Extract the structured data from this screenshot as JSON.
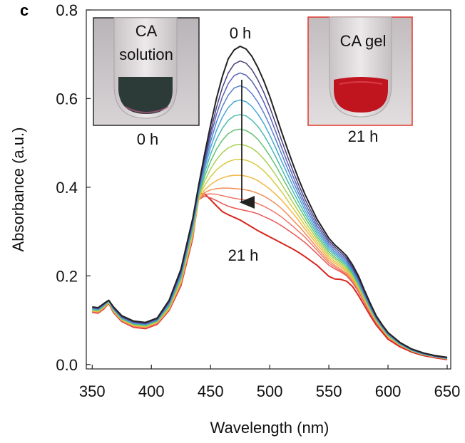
{
  "panel_letter": "c",
  "colors": {
    "axis": "#222222",
    "arrow": "#222222",
    "inset_solution_frame": "#2b2b2b",
    "inset_gel_frame": "#e0362c",
    "series_gradient": [
      "#222222",
      "#5b4fa8",
      "#5a7fd0",
      "#3fb4d8",
      "#52c07a",
      "#b9d34a",
      "#f2c53a",
      "#f58a5a",
      "#ee6a6a",
      "#d7261e"
    ]
  },
  "chart_data": {
    "type": "line",
    "title": "",
    "xlabel": "Wavelength (nm)",
    "ylabel": "Absorbance (a.u.)",
    "xlim": [
      345,
      653
    ],
    "ylim": [
      -0.01,
      0.8
    ],
    "xticks": [
      350,
      400,
      450,
      500,
      550,
      600,
      650
    ],
    "yticks": [
      0.0,
      0.2,
      0.4,
      0.6,
      0.8
    ],
    "xtick_labels": [
      "350",
      "400",
      "450",
      "500",
      "550",
      "600",
      "650"
    ],
    "ytick_labels": [
      "0.0",
      "0.2",
      "0.4",
      "0.6",
      "0.8"
    ],
    "grid": false,
    "legend": "none",
    "x": [
      350,
      355,
      360,
      364,
      368,
      375,
      385,
      395,
      405,
      415,
      425,
      435,
      440,
      445,
      450,
      455,
      460,
      465,
      470,
      475,
      480,
      485,
      490,
      495,
      500,
      505,
      510,
      515,
      520,
      525,
      530,
      540,
      550,
      555,
      560,
      565,
      570,
      575,
      580,
      585,
      590,
      595,
      600,
      610,
      620,
      630,
      640,
      650
    ],
    "series": [
      {
        "values": [
          0.13,
          0.128,
          0.138,
          0.145,
          0.13,
          0.11,
          0.098,
          0.095,
          0.105,
          0.145,
          0.215,
          0.33,
          0.405,
          0.475,
          0.54,
          0.6,
          0.65,
          0.69,
          0.71,
          0.718,
          0.712,
          0.695,
          0.67,
          0.64,
          0.605,
          0.565,
          0.525,
          0.487,
          0.45,
          0.415,
          0.383,
          0.328,
          0.285,
          0.27,
          0.258,
          0.245,
          0.225,
          0.2,
          0.168,
          0.138,
          0.11,
          0.09,
          0.072,
          0.05,
          0.035,
          0.026,
          0.02,
          0.016
        ]
      },
      {
        "values": [
          0.129,
          0.127,
          0.137,
          0.145,
          0.128,
          0.108,
          0.096,
          0.093,
          0.103,
          0.142,
          0.21,
          0.325,
          0.4,
          0.465,
          0.525,
          0.58,
          0.625,
          0.658,
          0.678,
          0.685,
          0.68,
          0.665,
          0.642,
          0.614,
          0.581,
          0.544,
          0.506,
          0.47,
          0.435,
          0.402,
          0.372,
          0.32,
          0.279,
          0.265,
          0.253,
          0.24,
          0.22,
          0.195,
          0.164,
          0.135,
          0.108,
          0.088,
          0.071,
          0.049,
          0.034,
          0.025,
          0.019,
          0.015
        ]
      },
      {
        "values": [
          0.128,
          0.126,
          0.136,
          0.145,
          0.127,
          0.107,
          0.095,
          0.092,
          0.102,
          0.14,
          0.207,
          0.322,
          0.396,
          0.458,
          0.514,
          0.564,
          0.604,
          0.634,
          0.652,
          0.658,
          0.653,
          0.639,
          0.618,
          0.592,
          0.561,
          0.526,
          0.49,
          0.456,
          0.423,
          0.392,
          0.363,
          0.313,
          0.274,
          0.26,
          0.248,
          0.236,
          0.216,
          0.192,
          0.161,
          0.133,
          0.106,
          0.087,
          0.07,
          0.048,
          0.034,
          0.025,
          0.019,
          0.015
        ]
      },
      {
        "values": [
          0.127,
          0.125,
          0.135,
          0.144,
          0.126,
          0.106,
          0.094,
          0.091,
          0.101,
          0.138,
          0.204,
          0.318,
          0.392,
          0.45,
          0.502,
          0.547,
          0.582,
          0.608,
          0.624,
          0.629,
          0.624,
          0.611,
          0.592,
          0.568,
          0.54,
          0.508,
          0.475,
          0.443,
          0.412,
          0.383,
          0.355,
          0.307,
          0.269,
          0.255,
          0.244,
          0.232,
          0.213,
          0.189,
          0.159,
          0.131,
          0.105,
          0.086,
          0.069,
          0.048,
          0.033,
          0.024,
          0.018,
          0.014
        ]
      },
      {
        "values": [
          0.126,
          0.124,
          0.134,
          0.144,
          0.125,
          0.105,
          0.093,
          0.09,
          0.1,
          0.136,
          0.201,
          0.314,
          0.388,
          0.442,
          0.489,
          0.528,
          0.558,
          0.58,
          0.593,
          0.597,
          0.593,
          0.582,
          0.565,
          0.544,
          0.518,
          0.489,
          0.459,
          0.43,
          0.401,
          0.374,
          0.347,
          0.301,
          0.264,
          0.251,
          0.24,
          0.228,
          0.21,
          0.186,
          0.157,
          0.129,
          0.104,
          0.085,
          0.068,
          0.047,
          0.033,
          0.024,
          0.018,
          0.014
        ]
      },
      {
        "values": [
          0.125,
          0.123,
          0.133,
          0.143,
          0.124,
          0.104,
          0.092,
          0.089,
          0.099,
          0.134,
          0.198,
          0.31,
          0.385,
          0.433,
          0.474,
          0.508,
          0.533,
          0.551,
          0.561,
          0.564,
          0.561,
          0.551,
          0.537,
          0.518,
          0.495,
          0.469,
          0.442,
          0.415,
          0.389,
          0.364,
          0.339,
          0.295,
          0.259,
          0.247,
          0.236,
          0.225,
          0.207,
          0.183,
          0.155,
          0.128,
          0.103,
          0.084,
          0.067,
          0.046,
          0.032,
          0.023,
          0.018,
          0.014
        ]
      },
      {
        "values": [
          0.124,
          0.122,
          0.132,
          0.142,
          0.123,
          0.103,
          0.091,
          0.088,
          0.098,
          0.132,
          0.195,
          0.306,
          0.382,
          0.424,
          0.458,
          0.486,
          0.506,
          0.521,
          0.529,
          0.531,
          0.528,
          0.52,
          0.508,
          0.491,
          0.471,
          0.449,
          0.425,
          0.401,
          0.377,
          0.354,
          0.331,
          0.289,
          0.254,
          0.242,
          0.232,
          0.221,
          0.204,
          0.18,
          0.153,
          0.126,
          0.101,
          0.083,
          0.066,
          0.046,
          0.032,
          0.023,
          0.018,
          0.014
        ]
      },
      {
        "values": [
          0.123,
          0.121,
          0.131,
          0.142,
          0.122,
          0.102,
          0.09,
          0.087,
          0.097,
          0.13,
          0.192,
          0.302,
          0.379,
          0.414,
          0.441,
          0.462,
          0.478,
          0.489,
          0.495,
          0.497,
          0.494,
          0.488,
          0.478,
          0.464,
          0.447,
          0.428,
          0.407,
          0.386,
          0.364,
          0.343,
          0.322,
          0.283,
          0.249,
          0.238,
          0.228,
          0.217,
          0.2,
          0.177,
          0.151,
          0.124,
          0.1,
          0.082,
          0.065,
          0.045,
          0.031,
          0.023,
          0.017,
          0.013
        ]
      },
      {
        "values": [
          0.122,
          0.12,
          0.13,
          0.141,
          0.121,
          0.101,
          0.089,
          0.086,
          0.096,
          0.128,
          0.189,
          0.298,
          0.376,
          0.404,
          0.424,
          0.439,
          0.45,
          0.458,
          0.462,
          0.463,
          0.461,
          0.456,
          0.448,
          0.437,
          0.423,
          0.407,
          0.39,
          0.371,
          0.352,
          0.333,
          0.313,
          0.277,
          0.244,
          0.233,
          0.224,
          0.213,
          0.197,
          0.174,
          0.149,
          0.123,
          0.099,
          0.081,
          0.064,
          0.045,
          0.031,
          0.022,
          0.017,
          0.013
        ]
      },
      {
        "values": [
          0.121,
          0.119,
          0.129,
          0.14,
          0.12,
          0.1,
          0.088,
          0.085,
          0.095,
          0.126,
          0.186,
          0.294,
          0.373,
          0.394,
          0.406,
          0.415,
          0.421,
          0.425,
          0.427,
          0.427,
          0.425,
          0.421,
          0.415,
          0.406,
          0.396,
          0.384,
          0.371,
          0.356,
          0.34,
          0.323,
          0.305,
          0.271,
          0.239,
          0.229,
          0.22,
          0.21,
          0.194,
          0.172,
          0.147,
          0.121,
          0.098,
          0.08,
          0.063,
          0.044,
          0.031,
          0.022,
          0.017,
          0.013
        ]
      },
      {
        "values": [
          0.12,
          0.118,
          0.128,
          0.139,
          0.119,
          0.099,
          0.087,
          0.084,
          0.094,
          0.125,
          0.184,
          0.291,
          0.372,
          0.388,
          0.394,
          0.397,
          0.398,
          0.398,
          0.397,
          0.396,
          0.394,
          0.391,
          0.386,
          0.38,
          0.372,
          0.363,
          0.352,
          0.339,
          0.325,
          0.311,
          0.296,
          0.264,
          0.234,
          0.224,
          0.215,
          0.206,
          0.19,
          0.169,
          0.144,
          0.119,
          0.097,
          0.079,
          0.063,
          0.044,
          0.031,
          0.022,
          0.017,
          0.013
        ]
      },
      {
        "values": [
          0.12,
          0.118,
          0.128,
          0.139,
          0.119,
          0.099,
          0.086,
          0.083,
          0.093,
          0.124,
          0.182,
          0.289,
          0.372,
          0.384,
          0.385,
          0.384,
          0.381,
          0.378,
          0.375,
          0.373,
          0.371,
          0.368,
          0.363,
          0.357,
          0.35,
          0.342,
          0.333,
          0.322,
          0.311,
          0.299,
          0.287,
          0.258,
          0.229,
          0.22,
          0.212,
          0.203,
          0.188,
          0.167,
          0.142,
          0.118,
          0.096,
          0.078,
          0.062,
          0.043,
          0.03,
          0.022,
          0.017,
          0.013
        ]
      },
      {
        "values": [
          0.119,
          0.117,
          0.127,
          0.138,
          0.118,
          0.098,
          0.085,
          0.082,
          0.092,
          0.123,
          0.18,
          0.287,
          0.372,
          0.38,
          0.376,
          0.37,
          0.363,
          0.357,
          0.353,
          0.35,
          0.347,
          0.344,
          0.34,
          0.334,
          0.328,
          0.321,
          0.313,
          0.304,
          0.295,
          0.285,
          0.275,
          0.25,
          0.224,
          0.216,
          0.209,
          0.2,
          0.185,
          0.164,
          0.14,
          0.116,
          0.094,
          0.077,
          0.061,
          0.043,
          0.03,
          0.022,
          0.016,
          0.012
        ]
      },
      {
        "values": [
          0.118,
          0.116,
          0.126,
          0.138,
          0.117,
          0.097,
          0.084,
          0.081,
          0.091,
          0.122,
          0.178,
          0.285,
          0.385,
          0.385,
          0.372,
          0.358,
          0.345,
          0.338,
          0.332,
          0.326,
          0.318,
          0.31,
          0.302,
          0.295,
          0.288,
          0.281,
          0.274,
          0.267,
          0.26,
          0.252,
          0.243,
          0.224,
          0.199,
          0.193,
          0.192,
          0.188,
          0.176,
          0.156,
          0.133,
          0.11,
          0.089,
          0.073,
          0.057,
          0.04,
          0.028,
          0.02,
          0.015,
          0.011
        ]
      }
    ],
    "annotations": {
      "start_label": "0 h",
      "end_label": "21 h"
    },
    "insets": [
      {
        "title_line1": "CA",
        "title_line2": "solution",
        "caption": "0 h"
      },
      {
        "title_line1": "CA gel",
        "title_line2": "",
        "caption": "21 h"
      }
    ]
  }
}
